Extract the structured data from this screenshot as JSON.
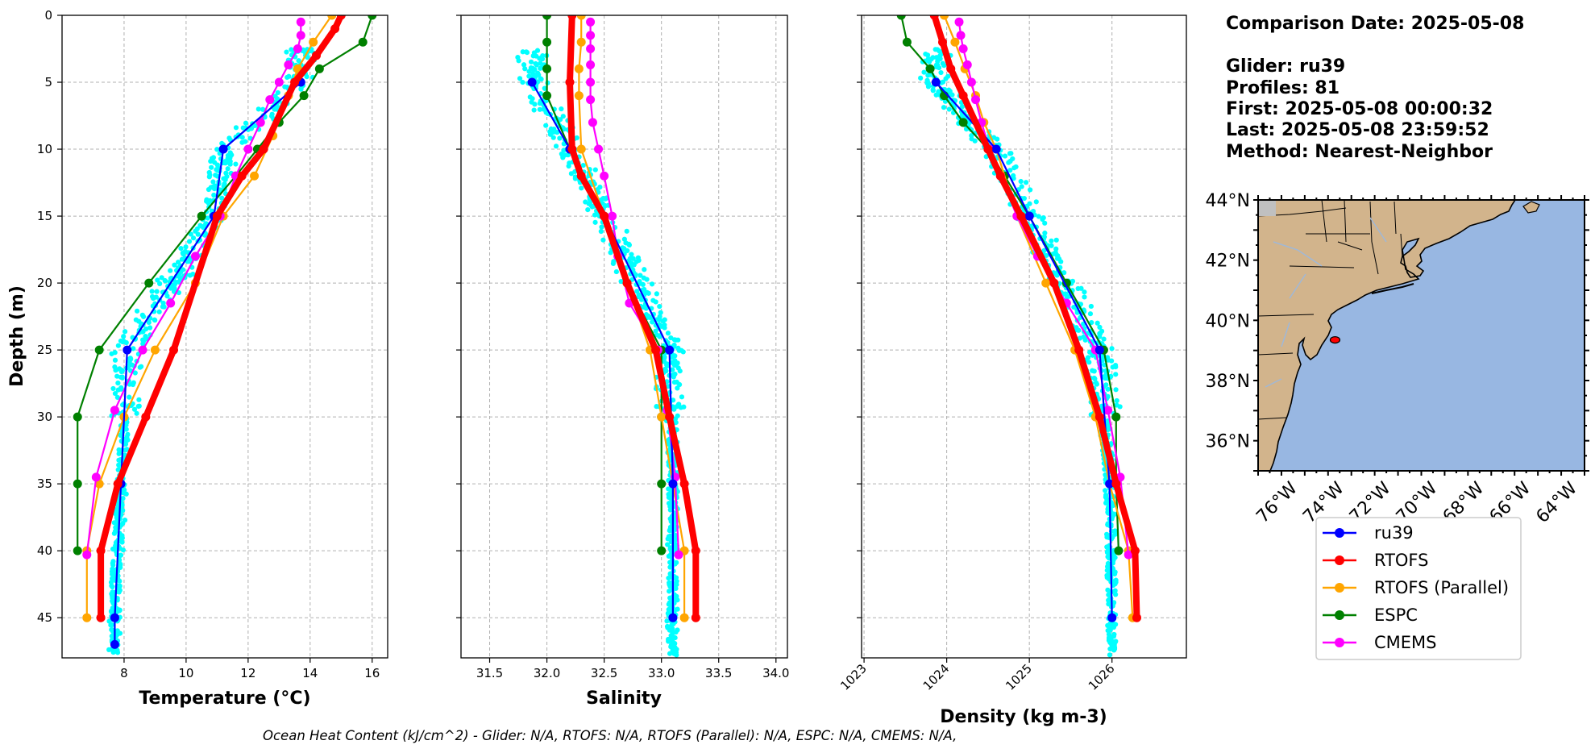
{
  "info": {
    "comparison": "Comparison Date: 2025-05-08",
    "glider": "Glider: ru39",
    "profiles": "Profiles: 81",
    "first": "First: 2025-05-08 00:00:32",
    "last": "Last: 2025-05-08 23:59:52",
    "method": "Method: Nearest-Neighbor"
  },
  "footer": "Ocean Heat Content (kJ/cm^2) - Glider: N/A,  RTOFS: N/A,  RTOFS (Parallel): N/A,  ESPC: N/A,  CMEMS: N/A,",
  "colors": {
    "ru39": "#0000ff",
    "RTOFS": "#ff0000",
    "RTOFS (Parallel)": "#ffa500",
    "ESPC": "#008000",
    "CMEMS": "#ff00ff",
    "scatter": "#00ffff",
    "land": "#d2b48c",
    "ocean": "#98b7e2",
    "grid": "#b0b0b0"
  },
  "legend": [
    "ru39",
    "RTOFS",
    "RTOFS (Parallel)",
    "ESPC",
    "CMEMS"
  ],
  "chart_data": [
    {
      "type": "line",
      "panel": "temperature",
      "xlabel": "Temperature (°C)",
      "ylabel": "Depth (m)",
      "xlim": [
        6.0,
        16.5
      ],
      "ylim": [
        48,
        0
      ],
      "xticks": [
        8,
        10,
        12,
        14,
        16
      ],
      "yticks": [
        0,
        5,
        10,
        15,
        20,
        25,
        30,
        35,
        40,
        45
      ],
      "grid": true,
      "series": [
        {
          "name": "ru39",
          "x": [
            13.7,
            11.2,
            10.9,
            8.1,
            7.9,
            7.7,
            7.7
          ],
          "y": [
            5,
            10,
            15,
            25,
            35,
            45,
            47
          ]
        },
        {
          "name": "RTOFS",
          "x": [
            15.0,
            14.8,
            14.2,
            13.5,
            12.5,
            11.8,
            11.0,
            9.6,
            8.7,
            7.8,
            7.25,
            7.25
          ],
          "y": [
            0,
            1,
            3,
            5,
            10,
            12,
            15,
            25,
            30,
            35,
            40,
            45
          ]
        },
        {
          "name": "RTOFS (Parallel)",
          "x": [
            14.7,
            14.1,
            13.6,
            13.3,
            12.8,
            12.2,
            11.2,
            10.3,
            9.0,
            8.0,
            7.2,
            6.8,
            6.8
          ],
          "y": [
            0,
            2,
            4,
            6,
            9,
            12,
            15,
            20,
            25,
            30,
            35,
            40,
            45
          ]
        },
        {
          "name": "ESPC",
          "x": [
            16.0,
            15.7,
            14.3,
            13.8,
            13.0,
            12.3,
            11.6,
            10.5,
            8.8,
            7.2,
            6.5,
            6.5,
            6.5
          ],
          "y": [
            0,
            2,
            4,
            6,
            8,
            10,
            12,
            15,
            20,
            25,
            30,
            35,
            40
          ]
        },
        {
          "name": "CMEMS",
          "x": [
            13.7,
            13.7,
            13.6,
            13.3,
            13.0,
            12.7,
            12.4,
            12.0,
            11.6,
            11.1,
            10.3,
            9.5,
            8.6,
            7.7,
            7.1,
            6.8
          ],
          "y": [
            0.5,
            1.5,
            2.5,
            3.7,
            5.0,
            6.3,
            8.0,
            10.0,
            12.0,
            15.0,
            18.0,
            21.5,
            25.0,
            29.5,
            34.5,
            40.3
          ]
        }
      ]
    },
    {
      "type": "line",
      "panel": "salinity",
      "xlabel": "Salinity",
      "xlim": [
        31.25,
        34.1
      ],
      "ylim": [
        48,
        0
      ],
      "xticks": [
        31.5,
        32.0,
        32.5,
        33.0,
        33.5,
        34.0
      ],
      "grid": true,
      "series": [
        {
          "name": "ru39",
          "x": [
            31.87,
            32.2,
            32.5,
            33.07,
            33.1,
            33.1
          ],
          "y": [
            5,
            10,
            15,
            25,
            35,
            45
          ]
        },
        {
          "name": "RTOFS",
          "x": [
            32.22,
            32.2,
            32.22,
            32.3,
            32.5,
            32.7,
            32.95,
            33.07,
            33.2,
            33.3,
            33.3
          ],
          "y": [
            0,
            5,
            10,
            12,
            15,
            20,
            25,
            30,
            35,
            40,
            45
          ]
        },
        {
          "name": "RTOFS (Parallel)",
          "x": [
            32.3,
            32.3,
            32.28,
            32.28,
            32.3,
            32.5,
            32.7,
            32.9,
            33.0,
            33.1,
            33.2,
            33.2
          ],
          "y": [
            0,
            2,
            4,
            6,
            10,
            15,
            20,
            25,
            30,
            35,
            40,
            45
          ]
        },
        {
          "name": "ESPC",
          "x": [
            32.0,
            32.0,
            32.0,
            32.0,
            32.2,
            32.5,
            32.7,
            33.0,
            33.0,
            33.0,
            33.0
          ],
          "y": [
            0,
            2,
            4,
            6,
            10,
            15,
            20,
            25,
            30,
            35,
            40
          ]
        },
        {
          "name": "CMEMS",
          "x": [
            32.38,
            32.38,
            32.38,
            32.38,
            32.38,
            32.38,
            32.4,
            32.45,
            32.5,
            32.57,
            32.62,
            32.72,
            32.97,
            33.05,
            33.12,
            33.15
          ],
          "y": [
            0.5,
            1.5,
            2.5,
            3.7,
            5.0,
            6.3,
            8.0,
            10.0,
            12.0,
            15.0,
            18.0,
            21.5,
            25.0,
            29.5,
            34.5,
            40.3
          ]
        }
      ]
    },
    {
      "type": "line",
      "panel": "density",
      "xlabel": "Density (kg m-3)",
      "xlim": [
        1022.97,
        1026.9
      ],
      "ylim": [
        48,
        0
      ],
      "xticks": [
        1023,
        1024,
        1025,
        1026
      ],
      "grid": true,
      "series": [
        {
          "name": "ru39",
          "x": [
            1023.87,
            1024.6,
            1025.0,
            1025.85,
            1025.97,
            1026.0
          ],
          "y": [
            5,
            10,
            15,
            25,
            35,
            45
          ]
        },
        {
          "name": "RTOFS",
          "x": [
            1023.85,
            1023.95,
            1024.05,
            1024.2,
            1024.5,
            1024.65,
            1024.9,
            1025.3,
            1025.6,
            1025.85,
            1026.05,
            1026.28,
            1026.3
          ],
          "y": [
            0,
            2,
            4,
            6,
            10,
            12,
            15,
            20,
            25,
            30,
            35,
            40,
            45
          ]
        },
        {
          "name": "RTOFS (Parallel)",
          "x": [
            1023.97,
            1024.1,
            1024.22,
            1024.35,
            1024.45,
            1024.6,
            1024.85,
            1025.2,
            1025.55,
            1025.8,
            1025.97,
            1026.2,
            1026.25
          ],
          "y": [
            0,
            2,
            4,
            6,
            8,
            10,
            15,
            20,
            25,
            30,
            35,
            40,
            45
          ]
        },
        {
          "name": "ESPC",
          "x": [
            1023.45,
            1023.52,
            1023.8,
            1023.97,
            1024.2,
            1024.5,
            1024.7,
            1025.0,
            1025.45,
            1025.9,
            1026.05,
            1026.05,
            1026.08
          ],
          "y": [
            0,
            2,
            4,
            6,
            8,
            10,
            12,
            15,
            20,
            25,
            30,
            35,
            40
          ]
        },
        {
          "name": "CMEMS",
          "x": [
            1024.15,
            1024.17,
            1024.2,
            1024.25,
            1024.3,
            1024.35,
            1024.42,
            1024.52,
            1024.65,
            1024.85,
            1025.1,
            1025.45,
            1025.8,
            1025.95,
            1026.1,
            1026.2
          ],
          "y": [
            0.5,
            1.5,
            2.5,
            3.7,
            5.0,
            6.3,
            8.0,
            10.0,
            12.0,
            15.0,
            18.0,
            21.5,
            25.0,
            29.5,
            34.5,
            40.3
          ]
        }
      ]
    },
    {
      "type": "map",
      "panel": "map",
      "lon_range": [
        -77,
        -63
      ],
      "lat_range": [
        35,
        44
      ],
      "lon_ticks": [
        "76°W",
        "74°W",
        "72°W",
        "70°W",
        "68°W",
        "66°W",
        "64°W"
      ],
      "lat_ticks": [
        "36°N",
        "38°N",
        "40°N",
        "42°N",
        "44°N"
      ],
      "glider_position": {
        "lon": -73.7,
        "lat": 39.35
      }
    }
  ]
}
